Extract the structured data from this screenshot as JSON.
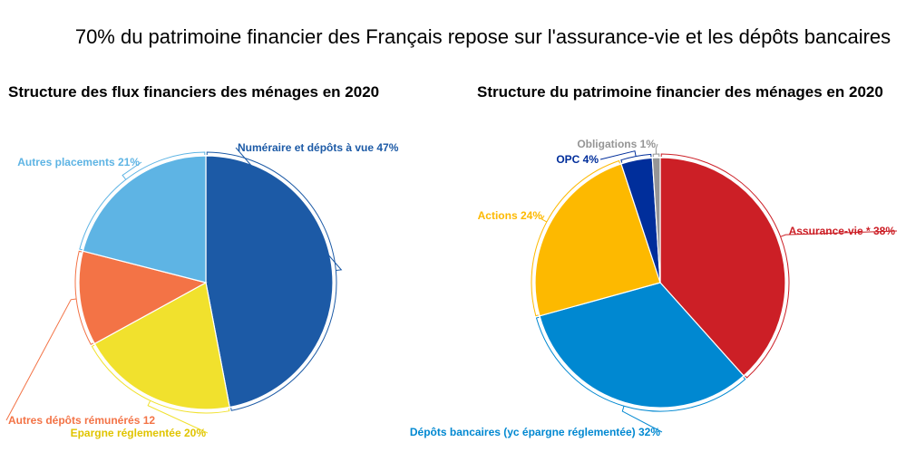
{
  "title": "70% du patrimoine financier des Français repose sur l'assurance-vie et les dépôts bancaires",
  "chart_data": [
    {
      "type": "pie",
      "title": "Structure des flux financiers des ménages en 2020",
      "slices": [
        {
          "label": "Numéraire et dépôts à vue 47%",
          "value": 47,
          "color": "#1c5aa6"
        },
        {
          "label": "Epargne réglementée 20%",
          "value": 20,
          "color": "#f1e12d"
        },
        {
          "label": "Autres dépôts rémunérés 12",
          "value": 12,
          "color": "#f37346"
        },
        {
          "label": "Autres placements 21%",
          "value": 21,
          "color": "#5eb4e4"
        }
      ]
    },
    {
      "type": "pie",
      "title": "Structure du patrimoine financier des ménages en 2020",
      "slices": [
        {
          "label": "Assurance-vie * 38%",
          "value": 38,
          "color": "#cc1f26"
        },
        {
          "label": "Dépôts bancaires (yc épargne réglementée) 32%",
          "value": 32,
          "color": "#0088d1"
        },
        {
          "label": "Actions 24%",
          "value": 24,
          "color": "#fdb900"
        },
        {
          "label": "OPC 4%",
          "value": 4,
          "color": "#002e9b"
        },
        {
          "label": "Obligations 1%",
          "value": 1,
          "color": "#959595"
        }
      ]
    }
  ]
}
